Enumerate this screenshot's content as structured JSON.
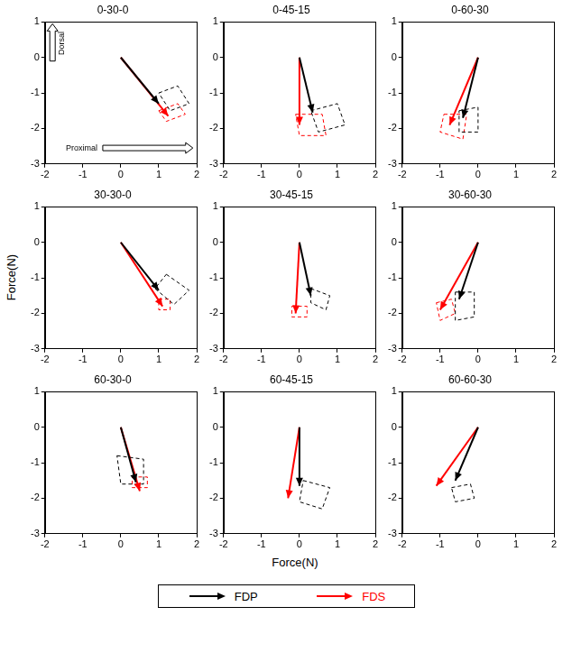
{
  "chart_data": {
    "type": "vector",
    "xlabel": "Force(N)",
    "ylabel": "Force(N)",
    "xlim": [
      -2,
      2
    ],
    "ylim": [
      -3,
      1
    ],
    "xticks": [
      -2,
      -1,
      0,
      1,
      2
    ],
    "yticks": [
      -3,
      -2,
      -1,
      0,
      1
    ],
    "origin": [
      0,
      0
    ],
    "legend": "bottom",
    "series": [
      {
        "name": "FDP",
        "color": "#000000"
      },
      {
        "name": "FDS",
        "color": "#ff0000"
      }
    ],
    "annotations": [
      "Dorsal",
      "Proximal"
    ],
    "panels": [
      {
        "title": "0-30-0",
        "arrows": [
          {
            "x": 1.0,
            "y": -1.3,
            "region": [
              [
                1.0,
                -1.0
              ],
              [
                1.5,
                -0.8
              ],
              [
                1.8,
                -1.3
              ],
              [
                1.3,
                -1.5
              ]
            ]
          },
          {
            "x": 1.25,
            "y": -1.65,
            "region": [
              [
                1.0,
                -1.5
              ],
              [
                1.5,
                -1.3
              ],
              [
                1.7,
                -1.6
              ],
              [
                1.2,
                -1.8
              ]
            ]
          }
        ]
      },
      {
        "title": "0-45-15",
        "arrows": [
          {
            "x": 0.35,
            "y": -1.55,
            "region": [
              [
                0.3,
                -1.5
              ],
              [
                1.0,
                -1.3
              ],
              [
                1.2,
                -1.9
              ],
              [
                0.5,
                -2.1
              ]
            ]
          },
          {
            "x": 0.0,
            "y": -1.9,
            "region": [
              [
                -0.1,
                -1.6
              ],
              [
                0.6,
                -1.6
              ],
              [
                0.7,
                -2.2
              ],
              [
                0.0,
                -2.2
              ]
            ]
          }
        ]
      },
      {
        "title": "0-60-30",
        "arrows": [
          {
            "x": -0.4,
            "y": -1.7,
            "region": [
              [
                -0.5,
                -1.5
              ],
              [
                0.0,
                -1.4
              ],
              [
                0.0,
                -2.1
              ],
              [
                -0.5,
                -2.1
              ]
            ]
          },
          {
            "x": -0.75,
            "y": -1.9,
            "region": [
              [
                -0.9,
                -1.6
              ],
              [
                -0.3,
                -1.6
              ],
              [
                -0.4,
                -2.3
              ],
              [
                -1.0,
                -2.1
              ]
            ]
          }
        ]
      },
      {
        "title": "30-30-0",
        "arrows": [
          {
            "x": 1.0,
            "y": -1.35,
            "region": [
              [
                1.2,
                -0.9
              ],
              [
                1.8,
                -1.35
              ],
              [
                1.4,
                -1.75
              ],
              [
                0.9,
                -1.3
              ]
            ]
          },
          {
            "x": 1.1,
            "y": -1.8,
            "region": [
              [
                1.0,
                -1.6
              ],
              [
                1.3,
                -1.6
              ],
              [
                1.3,
                -1.9
              ],
              [
                1.0,
                -1.9
              ]
            ]
          }
        ]
      },
      {
        "title": "30-45-15",
        "arrows": [
          {
            "x": 0.3,
            "y": -1.5,
            "region": [
              [
                0.3,
                -1.3
              ],
              [
                0.8,
                -1.5
              ],
              [
                0.7,
                -1.9
              ],
              [
                0.3,
                -1.7
              ]
            ]
          },
          {
            "x": -0.1,
            "y": -2.0,
            "region": [
              [
                -0.2,
                -1.8
              ],
              [
                0.2,
                -1.8
              ],
              [
                0.2,
                -2.1
              ],
              [
                -0.2,
                -2.1
              ]
            ]
          }
        ]
      },
      {
        "title": "30-60-30",
        "arrows": [
          {
            "x": -0.5,
            "y": -1.6,
            "region": [
              [
                -0.6,
                -1.4
              ],
              [
                -0.1,
                -1.4
              ],
              [
                -0.1,
                -2.1
              ],
              [
                -0.6,
                -2.2
              ]
            ]
          },
          {
            "x": -1.0,
            "y": -1.9,
            "region": [
              [
                -1.1,
                -1.7
              ],
              [
                -0.7,
                -1.6
              ],
              [
                -0.6,
                -2.0
              ],
              [
                -1.0,
                -2.2
              ]
            ]
          }
        ]
      },
      {
        "title": "60-30-0",
        "arrows": [
          {
            "x": 0.4,
            "y": -1.55,
            "region": [
              [
                -0.1,
                -0.8
              ],
              [
                0.6,
                -0.9
              ],
              [
                0.6,
                -1.6
              ],
              [
                0.0,
                -1.6
              ]
            ]
          },
          {
            "x": 0.5,
            "y": -1.8,
            "region": [
              [
                0.3,
                -1.4
              ],
              [
                0.7,
                -1.4
              ],
              [
                0.7,
                -1.7
              ],
              [
                0.3,
                -1.7
              ]
            ]
          }
        ]
      },
      {
        "title": "60-45-15",
        "arrows": [
          {
            "x": 0.0,
            "y": -1.65,
            "region": [
              [
                0.1,
                -1.5
              ],
              [
                0.8,
                -1.7
              ],
              [
                0.6,
                -2.3
              ],
              [
                0.0,
                -2.1
              ]
            ]
          },
          {
            "x": -0.3,
            "y": -2.0,
            "region": null
          }
        ]
      },
      {
        "title": "60-60-30",
        "arrows": [
          {
            "x": -0.6,
            "y": -1.5,
            "region": [
              [
                -0.7,
                -1.7
              ],
              [
                -0.2,
                -1.6
              ],
              [
                -0.1,
                -2.0
              ],
              [
                -0.6,
                -2.1
              ]
            ]
          },
          {
            "x": -1.1,
            "y": -1.65,
            "region": null
          }
        ]
      }
    ]
  }
}
